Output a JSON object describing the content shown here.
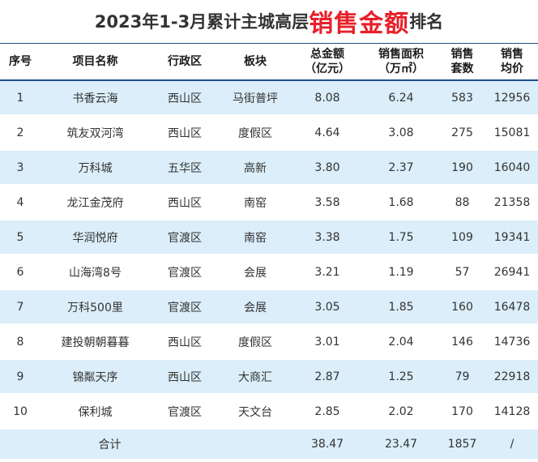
{
  "title": {
    "prefix": "2023年1-3月累计主城高层",
    "highlight": "销售金额",
    "suffix": "排名"
  },
  "headers": [
    "序号",
    "项目名称",
    "行政区",
    "板块",
    "总金额\n（亿元）",
    "销售面积\n（万㎡）",
    "销售\n套数",
    "销售\n均价"
  ],
  "rows": [
    [
      "1",
      "书香云海",
      "西山区",
      "马街普坪",
      "8.08",
      "6.24",
      "583",
      "12956"
    ],
    [
      "2",
      "筑友双河湾",
      "西山区",
      "度假区",
      "4.64",
      "3.08",
      "275",
      "15081"
    ],
    [
      "3",
      "万科城",
      "五华区",
      "高新",
      "3.80",
      "2.37",
      "190",
      "16040"
    ],
    [
      "4",
      "龙江金茂府",
      "西山区",
      "南窑",
      "3.58",
      "1.68",
      "88",
      "21358"
    ],
    [
      "5",
      "华润悦府",
      "官渡区",
      "南窑",
      "3.38",
      "1.75",
      "109",
      "19341"
    ],
    [
      "6",
      "山海湾8号",
      "官渡区",
      "会展",
      "3.21",
      "1.19",
      "57",
      "26941"
    ],
    [
      "7",
      "万科500里",
      "官渡区",
      "会展",
      "3.05",
      "1.85",
      "160",
      "16478"
    ],
    [
      "8",
      "建投朝朝暮暮",
      "西山区",
      "度假区",
      "3.01",
      "2.04",
      "146",
      "14736"
    ],
    [
      "9",
      "锦粼天序",
      "西山区",
      "大商汇",
      "2.87",
      "1.25",
      "79",
      "22918"
    ],
    [
      "10",
      "保利城",
      "官渡区",
      "天文台",
      "2.85",
      "2.02",
      "170",
      "14128"
    ]
  ],
  "total": {
    "label": "合计",
    "amount": "38.47",
    "area": "23.47",
    "units": "1857",
    "price": "/"
  },
  "colors": {
    "highlight": "#e8202a",
    "stripe": "#dbeef9",
    "rule": "#1f4e8c"
  }
}
